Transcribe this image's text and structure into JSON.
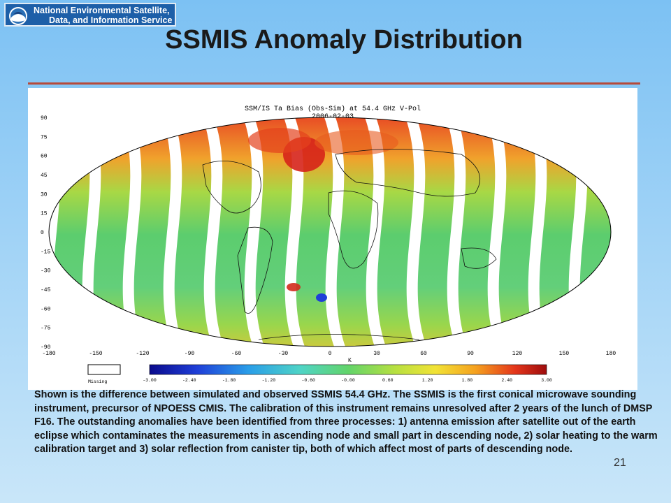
{
  "banner": {
    "line1": "National Environmental Satellite,",
    "line2": "Data, and Information Service",
    "logo_icon": "noaa-logo-icon"
  },
  "slide": {
    "title": "SSMIS Anomaly Distribution",
    "number": "21"
  },
  "figure": {
    "title_line1": "SSM/IS Ta Bias (Obs-Sim) at 54.4 GHz V-Pol",
    "title_line2": "2006-02-03",
    "lat_ticks": [
      "90",
      "75",
      "60",
      "45",
      "30",
      "15",
      "0",
      "-15",
      "-30",
      "-45",
      "-60",
      "-75",
      "-90"
    ],
    "lon_ticks": [
      "-180",
      "-150",
      "-120",
      "-90",
      "-60",
      "-30",
      "0",
      "30",
      "60",
      "90",
      "120",
      "150",
      "180"
    ],
    "colorbar_unit": "K",
    "missing_label": "Missing",
    "colorbar_ticks": [
      "-3.00",
      "-2.40",
      "-1.80",
      "-1.20",
      "-0.60",
      "-0.00",
      "0.60",
      "1.20",
      "1.80",
      "2.40",
      "3.00"
    ],
    "colors": {
      "cold": "#1d2fb8",
      "neutral": "#59c96a",
      "warm": "#d6241b"
    }
  },
  "caption": "Shown is the difference between simulated and observed  SSMIS 54.4 GHz. The SSMIS is the first conical microwave sounding instrument, precursor of NPOESS CMIS. The calibration of this instrument remains unresolved after 2 years of the lunch of DMSP F16. The outstanding anomalies have been identified from three processes: 1) antenna emission after satellite out of the earth eclipse which contaminates the measurements in ascending node and small part in descending node, 2) solar heating to the warm calibration target and 3) solar reflection from canister tip, both of which affect most of parts of descending node."
}
